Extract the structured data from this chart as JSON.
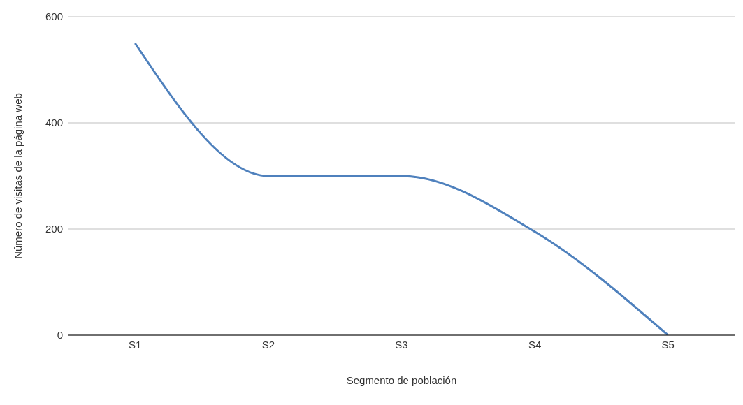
{
  "chart_data": {
    "type": "line",
    "xlabel": "Segmento de población",
    "ylabel": "Número de visitas de la página web",
    "categories": [
      "S1",
      "S2",
      "S3",
      "S4",
      "S5"
    ],
    "series": [
      {
        "color": "#4f81bd",
        "values": [
          550,
          300,
          300,
          195,
          0
        ]
      }
    ],
    "ylim": [
      0,
      600
    ],
    "yticks": [
      0,
      200,
      400,
      600
    ],
    "grid": "y",
    "legend": false,
    "marker": "none"
  }
}
